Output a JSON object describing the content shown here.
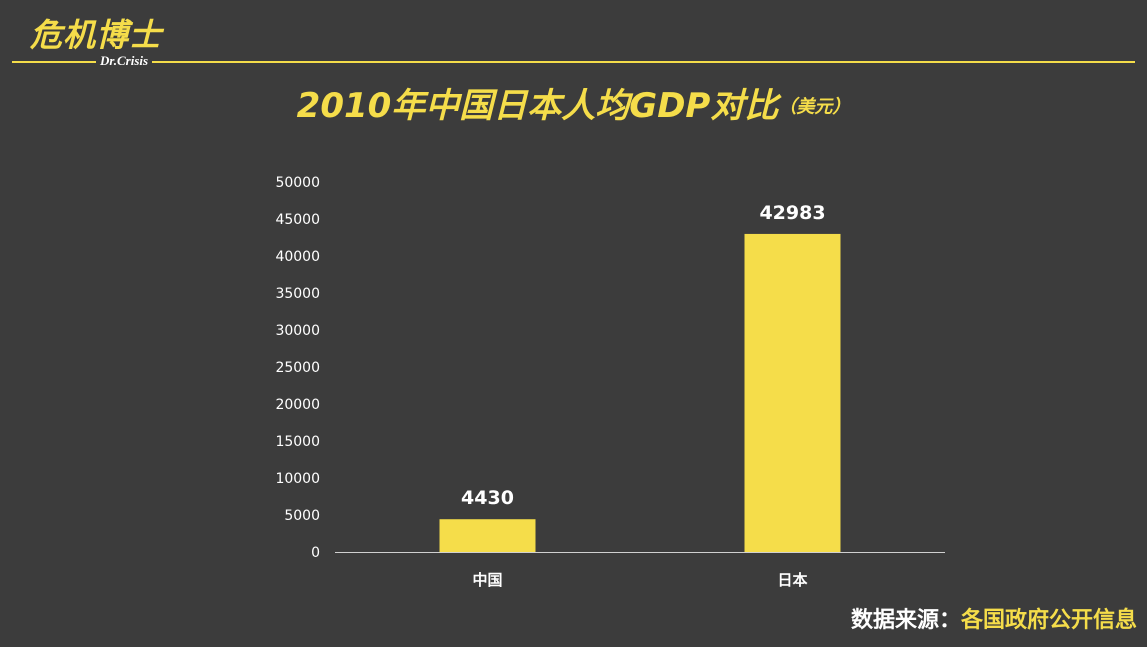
{
  "brand": {
    "name_cn": "危机博士",
    "name_en": "Dr.Crisis",
    "accent_color": "#f5dd4a",
    "background_color": "#3c3c3c"
  },
  "title": {
    "main": "2010年中国日本人均GDP对比",
    "unit": "（美元）"
  },
  "source": {
    "label": "数据来源：",
    "value": "各国政府公开信息"
  },
  "chart_data": {
    "type": "bar",
    "title": "2010年中国日本人均GDP对比",
    "xlabel": "",
    "ylabel": "",
    "categories": [
      "中国",
      "日本"
    ],
    "values": [
      4430,
      42983
    ],
    "data_labels": [
      "4430",
      "42983"
    ],
    "ylim": [
      0,
      50000
    ],
    "y_ticks": [
      0,
      5000,
      10000,
      15000,
      20000,
      25000,
      30000,
      35000,
      40000,
      45000,
      50000
    ],
    "bar_color": "#f5dd4a",
    "grid": false,
    "legend": "none"
  }
}
